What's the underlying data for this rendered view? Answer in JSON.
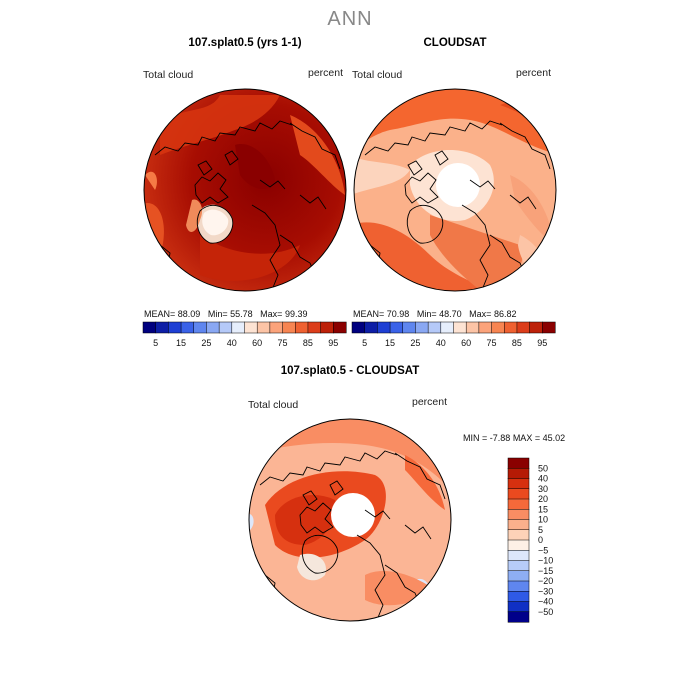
{
  "figure_title": "ANN",
  "panels": [
    {
      "title": "107.splat0.5 (yrs 1-1)",
      "left_label": "Total cloud",
      "right_label": "percent",
      "stats": {
        "mean_label": "MEAN=",
        "mean": "88.09",
        "min_label": "Min=",
        "min": "55.78",
        "max_label": "Max=",
        "max": "99.39"
      }
    },
    {
      "title": "CLOUDSAT",
      "left_label": "Total cloud",
      "right_label": "percent",
      "stats": {
        "mean_label": "MEAN=",
        "mean": "70.98",
        "min_label": "Min=",
        "min": "48.70",
        "max_label": "Max=",
        "max": "86.82"
      }
    },
    {
      "title": "107.splat0.5 - CLOUDSAT",
      "left_label": "Total cloud",
      "right_label": "percent",
      "stats": {
        "min_label": "MIN =",
        "min": "-7.88",
        "max_label": "MAX =",
        "max": "45.02"
      }
    }
  ],
  "chart_data": [
    {
      "type": "heatmap",
      "projection": "north polar stereographic",
      "title": "107.splat0.5 (yrs 1-1)",
      "field": "Total cloud",
      "units": "percent",
      "mean": 88.09,
      "min": 55.78,
      "max": 99.39,
      "colorbar": {
        "orientation": "horizontal",
        "tick_labels": [
          "5",
          "15",
          "25",
          "40",
          "60",
          "75",
          "85",
          "95"
        ],
        "colors": [
          "#00007f",
          "#0d1ea6",
          "#1e3fd4",
          "#3a62e8",
          "#5f86ef",
          "#8aa8f3",
          "#b5c9f8",
          "#e6eefc",
          "#fde3d3",
          "#fcc4a6",
          "#fba37b",
          "#f78552",
          "#ef6131",
          "#dc3d1a",
          "#bd2109",
          "#8a0000"
        ]
      }
    },
    {
      "type": "heatmap",
      "projection": "north polar stereographic",
      "title": "CLOUDSAT",
      "field": "Total cloud",
      "units": "percent",
      "mean": 70.98,
      "min": 48.7,
      "max": 86.82,
      "colorbar": {
        "orientation": "horizontal",
        "tick_labels": [
          "5",
          "15",
          "25",
          "40",
          "60",
          "75",
          "85",
          "95"
        ],
        "colors": [
          "#00007f",
          "#0d1ea6",
          "#1e3fd4",
          "#3a62e8",
          "#5f86ef",
          "#8aa8f3",
          "#b5c9f8",
          "#e6eefc",
          "#fde3d3",
          "#fcc4a6",
          "#fba37b",
          "#f78552",
          "#ef6131",
          "#dc3d1a",
          "#bd2109",
          "#8a0000"
        ]
      }
    },
    {
      "type": "heatmap",
      "projection": "north polar stereographic",
      "title": "107.splat0.5 - CLOUDSAT",
      "field": "Total cloud",
      "units": "percent",
      "min": -7.88,
      "max": 45.02,
      "colorbar": {
        "orientation": "vertical",
        "tick_labels": [
          "50",
          "40",
          "30",
          "20",
          "15",
          "10",
          "5",
          "0",
          "-5",
          "-10",
          "-15",
          "-20",
          "-30",
          "-40",
          "-50"
        ],
        "colors": [
          "#8a0000",
          "#b51a05",
          "#d6300f",
          "#ea4a1f",
          "#f5693a",
          "#f98d63",
          "#fbb08c",
          "#fdd2b8",
          "#fdf0e6",
          "#dde7fb",
          "#b7ccf8",
          "#8eaef3",
          "#5f86ef",
          "#2f5ae6",
          "#1030c4",
          "#00008a"
        ]
      }
    }
  ]
}
